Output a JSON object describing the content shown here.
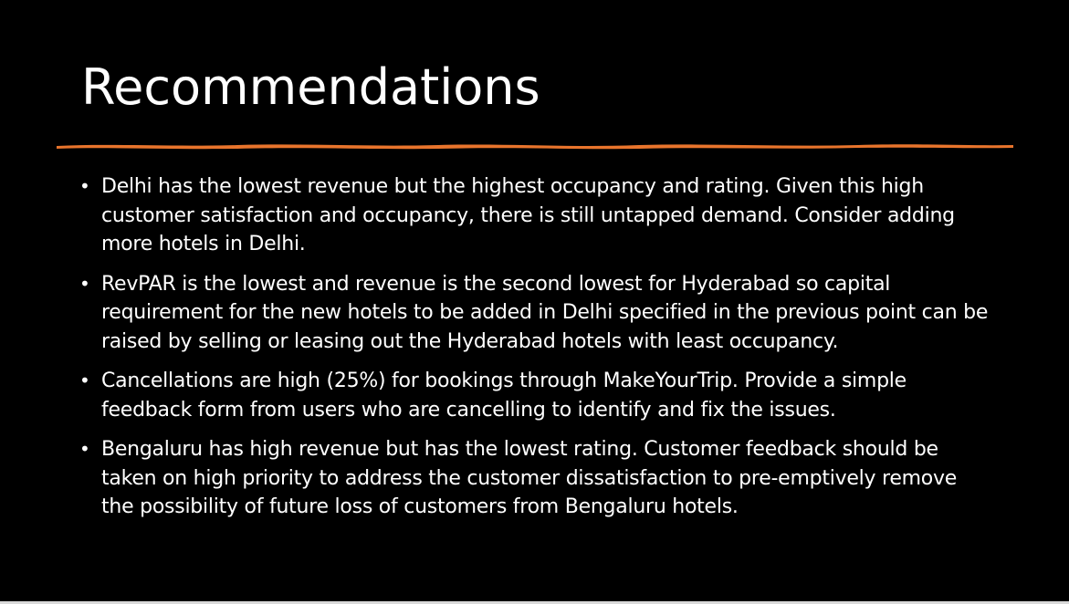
{
  "slide": {
    "title": "Recommendations",
    "accent_color": "#e8742c",
    "bullets": [
      {
        "marker": "•",
        "text": "Delhi has the lowest revenue but the highest occupancy and rating. Given this high customer satisfaction and occupancy, there is still untapped demand. Consider adding more hotels in Delhi."
      },
      {
        "marker": "•",
        "text": "RevPAR is the lowest and revenue is the second lowest for Hyderabad so capital requirement for the new hotels to be added in Delhi specified in the previous point can be raised by selling or leasing out the Hyderabad hotels with least occupancy."
      },
      {
        "marker": "•",
        "text": "Cancellations are high (25%) for bookings through MakeYourTrip. Provide a simple feedback form from users who are cancelling to identify and fix the issues."
      },
      {
        "marker": "•",
        "text": "Bengaluru has high revenue but has the lowest rating. Customer feedback should be taken on high priority to address the customer dissatisfaction to pre-emptively remove the possibility of future loss of customers from Bengaluru hotels."
      }
    ]
  }
}
